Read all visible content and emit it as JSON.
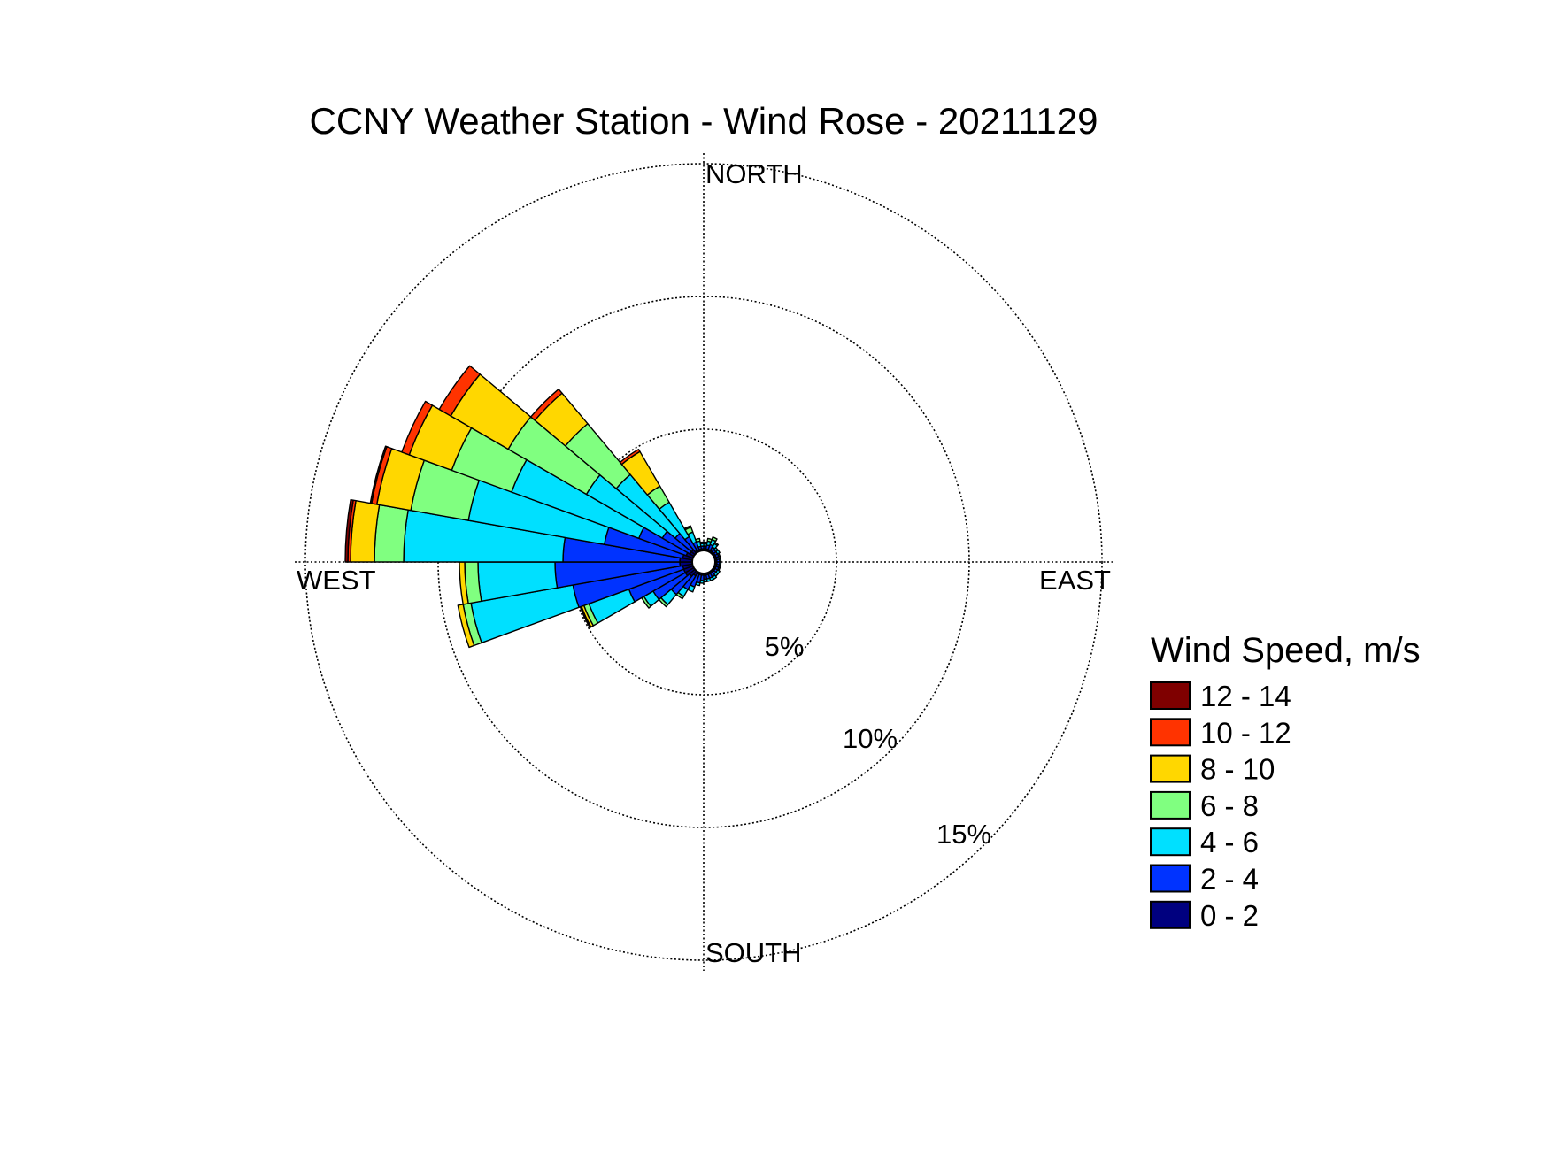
{
  "chart_data": {
    "type": "wind-rose",
    "title": "CCNY Weather Station - Wind Rose - 20211129",
    "direction_labels": {
      "north": "NORTH",
      "east": "EAST",
      "south": "SOUTH",
      "west": "WEST"
    },
    "rings": [
      {
        "value": 5,
        "label": "5%"
      },
      {
        "value": 10,
        "label": "10%"
      },
      {
        "value": 15,
        "label": "15%"
      }
    ],
    "r_max": 15,
    "calm_radius_percent": 0.5,
    "sector_width_deg": 10,
    "legend": {
      "title": "Wind Speed, m/s",
      "placement": "right",
      "entries": [
        {
          "label": "12 - 14",
          "color": "#7f0000"
        },
        {
          "label": "10 - 12",
          "color": "#ff3300"
        },
        {
          "label": "8 - 10",
          "color": "#ffd700"
        },
        {
          "label": "6 - 8",
          "color": "#80ff80"
        },
        {
          "label": "4 - 6",
          "color": "#00e0ff"
        },
        {
          "label": "2 - 4",
          "color": "#0033ff"
        },
        {
          "label": "0 - 2",
          "color": "#00007f"
        }
      ]
    },
    "speed_bins": [
      "0 - 2",
      "2 - 4",
      "4 - 6",
      "6 - 8",
      "8 - 10",
      "10 - 12",
      "12 - 14"
    ],
    "bin_colors": [
      "#00007f",
      "#0033ff",
      "#00e0ff",
      "#80ff80",
      "#ffd700",
      "#ff3300",
      "#7f0000"
    ],
    "sectors": [
      {
        "direction": 5,
        "cumulative": [
          0.5,
          0.6,
          0.7,
          0.75,
          0.75,
          0.75,
          0.75
        ]
      },
      {
        "direction": 15,
        "cumulative": [
          0.5,
          0.65,
          0.8,
          0.9,
          0.9,
          0.9,
          0.9
        ]
      },
      {
        "direction": 25,
        "cumulative": [
          0.5,
          0.7,
          0.9,
          1.0,
          1.0,
          1.0,
          1.0
        ]
      },
      {
        "direction": 35,
        "cumulative": [
          0.5,
          0.65,
          0.8,
          0.85,
          0.85,
          0.85,
          0.85
        ]
      },
      {
        "direction": 45,
        "cumulative": [
          0.5,
          0.6,
          0.7,
          0.7,
          0.7,
          0.7,
          0.7
        ]
      },
      {
        "direction": 55,
        "cumulative": [
          0.5,
          0.6,
          0.7,
          0.7,
          0.7,
          0.7,
          0.7
        ]
      },
      {
        "direction": 65,
        "cumulative": [
          0.5,
          0.6,
          0.65,
          0.65,
          0.65,
          0.65,
          0.65
        ]
      },
      {
        "direction": 75,
        "cumulative": [
          0.5,
          0.6,
          0.65,
          0.65,
          0.65,
          0.65,
          0.65
        ]
      },
      {
        "direction": 85,
        "cumulative": [
          0.5,
          0.6,
          0.65,
          0.65,
          0.65,
          0.65,
          0.65
        ]
      },
      {
        "direction": 95,
        "cumulative": [
          0.5,
          0.6,
          0.65,
          0.65,
          0.65,
          0.65,
          0.65
        ]
      },
      {
        "direction": 105,
        "cumulative": [
          0.5,
          0.6,
          0.65,
          0.65,
          0.65,
          0.65,
          0.65
        ]
      },
      {
        "direction": 115,
        "cumulative": [
          0.5,
          0.6,
          0.65,
          0.65,
          0.65,
          0.65,
          0.65
        ]
      },
      {
        "direction": 125,
        "cumulative": [
          0.5,
          0.6,
          0.7,
          0.7,
          0.7,
          0.7,
          0.7
        ]
      },
      {
        "direction": 135,
        "cumulative": [
          0.5,
          0.6,
          0.7,
          0.7,
          0.7,
          0.7,
          0.7
        ]
      },
      {
        "direction": 145,
        "cumulative": [
          0.5,
          0.65,
          0.75,
          0.75,
          0.75,
          0.75,
          0.75
        ]
      },
      {
        "direction": 155,
        "cumulative": [
          0.5,
          0.65,
          0.75,
          0.75,
          0.75,
          0.75,
          0.75
        ]
      },
      {
        "direction": 165,
        "cumulative": [
          0.5,
          0.65,
          0.75,
          0.75,
          0.75,
          0.75,
          0.75
        ]
      },
      {
        "direction": 175,
        "cumulative": [
          0.5,
          0.65,
          0.75,
          0.75,
          0.75,
          0.75,
          0.75
        ]
      },
      {
        "direction": 185,
        "cumulative": [
          0.5,
          0.7,
          0.8,
          0.8,
          0.8,
          0.8,
          0.8
        ]
      },
      {
        "direction": 195,
        "cumulative": [
          0.5,
          0.8,
          0.9,
          0.9,
          0.9,
          0.9,
          0.9
        ]
      },
      {
        "direction": 205,
        "cumulative": [
          0.5,
          1.0,
          1.2,
          1.2,
          1.2,
          1.2,
          1.2
        ]
      },
      {
        "direction": 215,
        "cumulative": [
          0.6,
          1.2,
          1.5,
          1.6,
          1.6,
          1.6,
          1.6
        ]
      },
      {
        "direction": 225,
        "cumulative": [
          0.7,
          1.6,
          2.1,
          2.2,
          2.2,
          2.2,
          2.2
        ]
      },
      {
        "direction": 235,
        "cumulative": [
          0.8,
          2.2,
          2.6,
          2.7,
          2.7,
          2.7,
          2.7
        ]
      },
      {
        "direction": 245,
        "cumulative": [
          0.8,
          3.0,
          4.6,
          4.8,
          4.9,
          4.9,
          4.95
        ]
      },
      {
        "direction": 255,
        "cumulative": [
          0.8,
          5.0,
          8.9,
          9.2,
          9.4,
          9.4,
          9.4
        ]
      },
      {
        "direction": 265,
        "cumulative": [
          0.9,
          5.6,
          8.5,
          9.0,
          9.2,
          9.2,
          9.2
        ]
      },
      {
        "direction": 275,
        "cumulative": [
          0.9,
          5.3,
          11.3,
          12.4,
          13.3,
          13.4,
          13.5
        ]
      },
      {
        "direction": 285,
        "cumulative": [
          0.8,
          3.8,
          9.0,
          11.2,
          12.5,
          12.7,
          12.75
        ]
      },
      {
        "direction": 295,
        "cumulative": [
          0.7,
          2.6,
          7.7,
          10.1,
          11.8,
          12.1,
          12.1
        ]
      },
      {
        "direction": 305,
        "cumulative": [
          0.6,
          1.8,
          5.1,
          8.5,
          11.0,
          11.5,
          11.5
        ]
      },
      {
        "direction": 315,
        "cumulative": [
          0.6,
          1.4,
          4.3,
          6.8,
          8.3,
          8.5,
          8.5
        ]
      },
      {
        "direction": 325,
        "cumulative": [
          0.5,
          1.1,
          2.6,
          3.3,
          4.8,
          4.9,
          4.9
        ]
      },
      {
        "direction": 335,
        "cumulative": [
          0.5,
          0.8,
          1.2,
          1.4,
          1.45,
          1.45,
          1.45
        ]
      },
      {
        "direction": 345,
        "cumulative": [
          0.5,
          0.6,
          0.8,
          0.9,
          0.9,
          0.9,
          0.9
        ]
      },
      {
        "direction": 355,
        "cumulative": [
          0.5,
          0.6,
          0.7,
          0.75,
          0.75,
          0.75,
          0.75
        ]
      }
    ]
  }
}
